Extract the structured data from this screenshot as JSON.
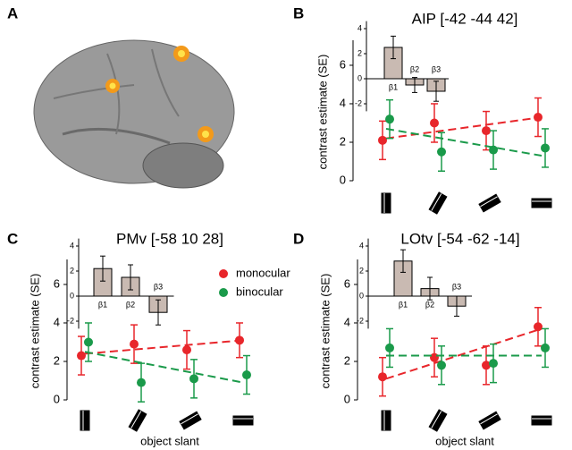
{
  "panel_labels": [
    "A",
    "B",
    "C",
    "D"
  ],
  "chart_data": [
    {
      "type": "errorbar-line",
      "title": "AIP [-42 -44 42]",
      "ylabel": "contrast estimate (SE)",
      "categories": [
        null,
        null,
        null,
        null
      ],
      "ylim": [
        0,
        7.3
      ],
      "yticks": [
        0,
        2,
        4,
        6
      ],
      "series": [
        {
          "color": "#e8262b",
          "values": [
            2.1,
            3.0,
            2.6,
            3.3
          ],
          "errors": [
            1.0,
            1.0,
            1.0,
            1.0
          ],
          "fit": [
            2.2,
            3.3
          ]
        },
        {
          "color": "#1a9a4a",
          "values": [
            3.2,
            1.5,
            1.6,
            1.7
          ],
          "errors": [
            1.0,
            1.0,
            1.0,
            1.0
          ],
          "fit": [
            2.7,
            1.3
          ]
        }
      ],
      "inset": {
        "type": "bar",
        "categories": [
          "β1",
          "β2",
          "β3"
        ],
        "values": [
          2.5,
          -0.5,
          -1.0
        ],
        "errors": [
          0.9,
          0.6,
          0.8
        ],
        "color": "#c9bab2",
        "ylim": [
          -2.6,
          4.6
        ],
        "yticks": [
          -2,
          0,
          2,
          4
        ]
      }
    },
    {
      "type": "errorbar-line",
      "title": "PMv [-58 10 28]",
      "ylabel": "contrast estimate (SE)",
      "xlabel": "object slant",
      "legend": true,
      "categories": [
        null,
        null,
        null,
        null
      ],
      "ylim": [
        0,
        7.3
      ],
      "yticks": [
        0,
        2,
        4,
        6
      ],
      "series": [
        {
          "name": "monocular",
          "color": "#e8262b",
          "values": [
            2.3,
            2.9,
            2.6,
            3.1
          ],
          "errors": [
            1.0,
            1.0,
            1.0,
            0.9
          ],
          "fit": [
            2.4,
            3.1
          ]
        },
        {
          "name": "binocular",
          "color": "#1a9a4a",
          "values": [
            3.0,
            0.9,
            1.1,
            1.3
          ],
          "errors": [
            1.0,
            1.0,
            1.0,
            1.0
          ],
          "fit": [
            2.5,
            0.9
          ]
        }
      ],
      "inset": {
        "type": "bar",
        "categories": [
          "β1",
          "β2",
          "β3"
        ],
        "values": [
          2.2,
          1.5,
          -1.3
        ],
        "errors": [
          1.0,
          1.0,
          1.0
        ],
        "color": "#c9bab2",
        "ylim": [
          -2.6,
          4.6
        ],
        "yticks": [
          -2,
          0,
          2,
          4
        ]
      }
    },
    {
      "type": "errorbar-line",
      "title": "LOtv [-54 -62 -14]",
      "ylabel": "contrast estimate (SE)",
      "xlabel": "object slant",
      "categories": [
        null,
        null,
        null,
        null
      ],
      "ylim": [
        0,
        7.3
      ],
      "yticks": [
        0,
        2,
        4,
        6
      ],
      "series": [
        {
          "color": "#e8262b",
          "values": [
            1.2,
            2.2,
            1.8,
            3.8
          ],
          "errors": [
            1.0,
            1.0,
            1.0,
            1.0
          ],
          "fit": [
            1.1,
            3.7
          ]
        },
        {
          "color": "#1a9a4a",
          "values": [
            2.7,
            1.8,
            1.9,
            2.7
          ],
          "errors": [
            1.0,
            1.0,
            1.0,
            1.0
          ],
          "fit": [
            2.3,
            2.3
          ]
        }
      ],
      "inset": {
        "type": "bar",
        "categories": [
          "β1",
          "β2",
          "β3"
        ],
        "values": [
          2.8,
          0.6,
          -0.8
        ],
        "errors": [
          0.9,
          0.9,
          0.8
        ],
        "color": "#c9bab2",
        "ylim": [
          -2.6,
          4.6
        ],
        "yticks": [
          -2,
          0,
          2,
          4
        ]
      }
    }
  ]
}
